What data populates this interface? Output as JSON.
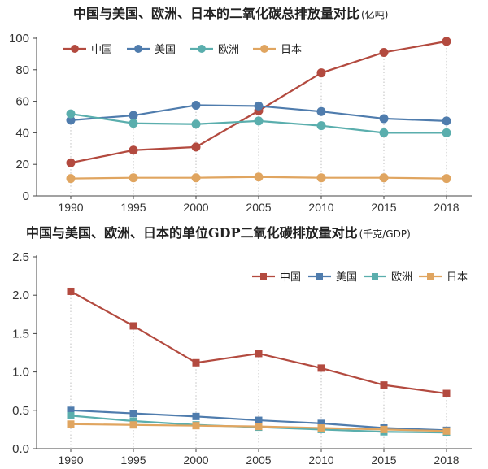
{
  "chart_data": [
    {
      "type": "line",
      "title": "中国与美国、欧洲、日本的二氧化碳总排放量对比",
      "unit": "(亿吨)",
      "categories": [
        "1990",
        "1995",
        "2000",
        "2005",
        "2010",
        "2015",
        "2018"
      ],
      "ylim": [
        0,
        100
      ],
      "yticks": [
        "0",
        "20",
        "40",
        "60",
        "80",
        "100"
      ],
      "series": [
        {
          "name": "中国",
          "color": "#b34a3f",
          "marker": "circle",
          "values": [
            21,
            29,
            31,
            54,
            78,
            91,
            98
          ]
        },
        {
          "name": "美国",
          "color": "#4f7cad",
          "marker": "circle",
          "values": [
            48,
            51,
            57.5,
            57,
            53.5,
            49,
            47.5
          ]
        },
        {
          "name": "欧洲",
          "color": "#5aaead",
          "marker": "circle",
          "values": [
            52,
            46,
            45.5,
            47.5,
            44.5,
            40,
            40
          ]
        },
        {
          "name": "日本",
          "color": "#e0a560",
          "marker": "circle",
          "values": [
            11,
            11.5,
            11.5,
            12,
            11.5,
            11.5,
            11
          ]
        }
      ],
      "legend": "top-left"
    },
    {
      "type": "line",
      "title": "中国与美国、欧洲、日本的单位GDP二氧化碳排放量对比",
      "unit": "(千克/GDP)",
      "categories": [
        "1990",
        "1995",
        "2000",
        "2005",
        "2010",
        "2015",
        "2018"
      ],
      "ylim": [
        0,
        2.5
      ],
      "yticks": [
        "0.0",
        "0.5",
        "1.0",
        "1.5",
        "2.0",
        "2.5"
      ],
      "series": [
        {
          "name": "中国",
          "color": "#b34a3f",
          "marker": "square",
          "values": [
            2.05,
            1.6,
            1.12,
            1.24,
            1.05,
            0.83,
            0.72
          ]
        },
        {
          "name": "美国",
          "color": "#4f7cad",
          "marker": "square",
          "values": [
            0.5,
            0.46,
            0.42,
            0.37,
            0.33,
            0.27,
            0.24
          ]
        },
        {
          "name": "欧洲",
          "color": "#5aaead",
          "marker": "square",
          "values": [
            0.43,
            0.36,
            0.31,
            0.28,
            0.25,
            0.22,
            0.21
          ]
        },
        {
          "name": "日本",
          "color": "#e0a560",
          "marker": "square",
          "values": [
            0.32,
            0.31,
            0.3,
            0.29,
            0.27,
            0.25,
            0.23
          ]
        }
      ],
      "legend": "top-right"
    }
  ]
}
